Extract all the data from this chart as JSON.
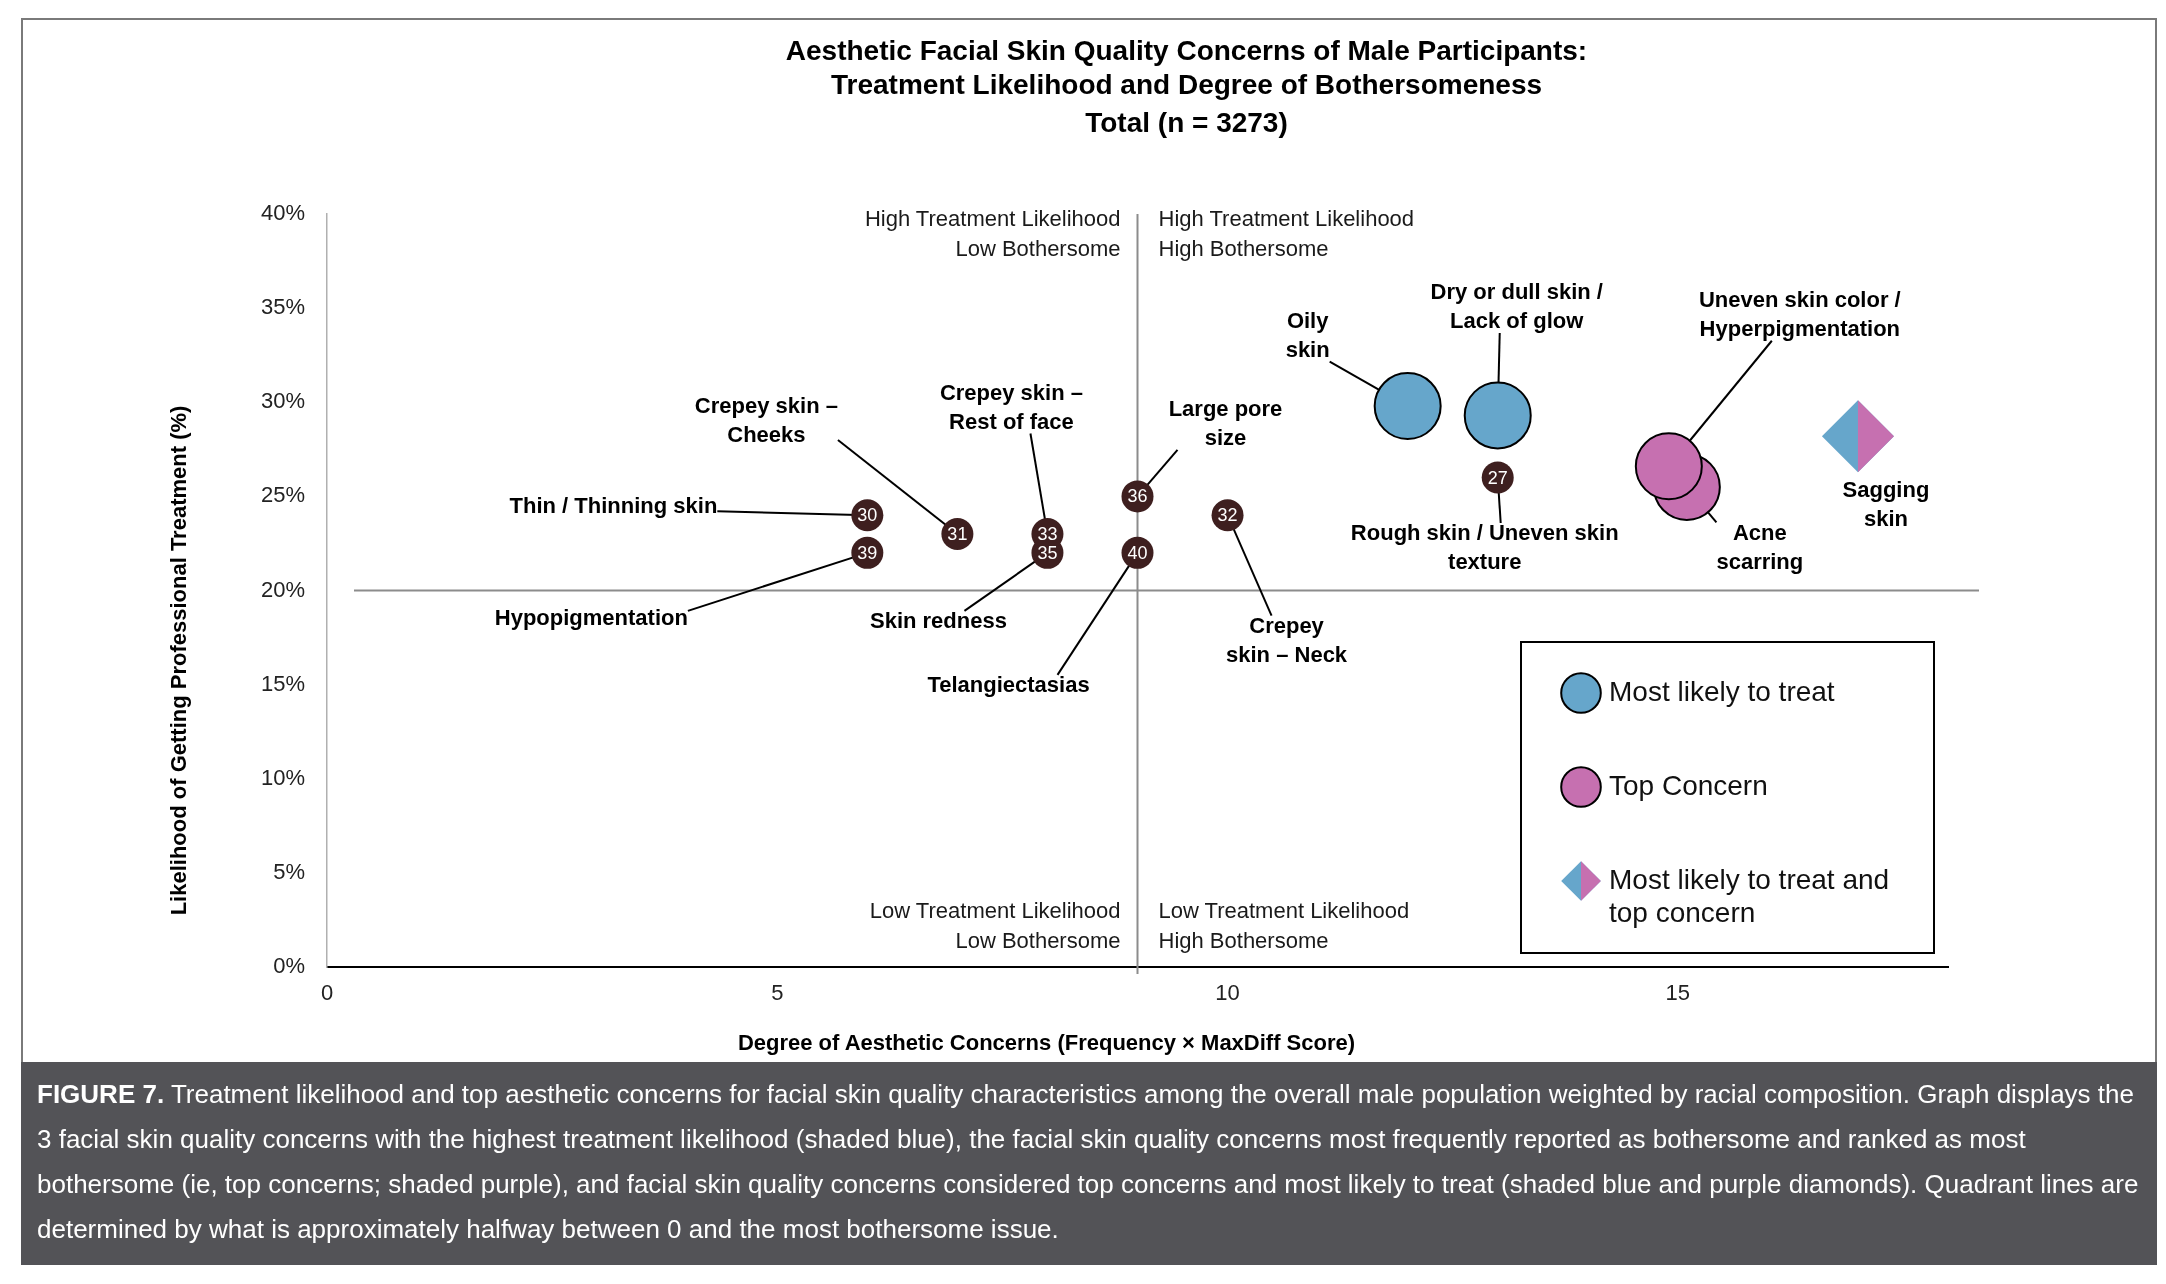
{
  "chart_data": {
    "type": "scatter",
    "title": "Aesthetic Facial Skin Quality Concerns of Male Participants:\nTreatment Likelihood and Degree of Bothersomeness",
    "subtitle": "Total (n = 3273)",
    "xlabel": "Degree of Aesthetic Concerns (Frequency × MaxDiff Score)",
    "ylabel": "Likelihood of Getting Professional Treatment (%)",
    "xlim": [
      0,
      18
    ],
    "xticks": [
      0,
      5,
      10,
      15
    ],
    "ylim": [
      0,
      40
    ],
    "yticks": [
      {
        "value": 0,
        "label": "0%"
      },
      {
        "value": 5,
        "label": "5%"
      },
      {
        "value": 10,
        "label": "10%"
      },
      {
        "value": 15,
        "label": "15%"
      },
      {
        "value": 20,
        "label": "20%"
      },
      {
        "value": 25,
        "label": "25%"
      },
      {
        "value": 30,
        "label": "30%"
      },
      {
        "value": 35,
        "label": "35%"
      },
      {
        "value": 40,
        "label": "40%"
      }
    ],
    "legend": "bottom right",
    "series": [
      {
        "color": "#3e1f1f",
        "marker": "circle",
        "x": [
          6,
          6,
          7,
          8,
          8,
          9,
          9,
          10,
          13
        ],
        "values": [
          24,
          22,
          23,
          22,
          23,
          25,
          22,
          24,
          26
        ]
      },
      {
        "name": "Most likely to treat",
        "color": "#66a6cb",
        "marker": "circle",
        "x": [
          12,
          13
        ],
        "values": [
          29.8,
          29.3
        ]
      },
      {
        "name": "Top Concern",
        "color": "#c670b0",
        "marker": "circle",
        "x": [
          15.1,
          14.9
        ],
        "values": [
          25.5,
          26.6
        ]
      },
      {
        "name": "Most likely to treat and top concern",
        "color": "#66a6cb",
        "marker": "diamond",
        "x": [
          17
        ],
        "values": [
          28.2
        ]
      },
      {
        "color": "#c670b0",
        "marker": "diamond",
        "x": [
          17
        ],
        "values": [
          28.2
        ]
      }
    ],
    "ref_lines": [
      {
        "axis": "x",
        "value": 9,
        "color": "#8c8c8c"
      },
      {
        "axis": "y",
        "value": 20,
        "color": "#8c8c8c"
      }
    ],
    "annotations": [
      "High Treatment Likelihood\nLow Bothersome",
      "High Treatment Likelihood\nHigh Bothersome",
      "Low Treatment Likelihood\nLow Bothersome",
      "Low Treatment Likelihood\nHigh Bothersome",
      {
        "text": "Thin / Thinning skin",
        "x": 6,
        "y": 24
      },
      {
        "text": "Crepey skin –\nCheeks",
        "x": 7,
        "y": 23
      },
      {
        "text": "Crepey skin –\nRest of face",
        "x": 8,
        "y": 23
      },
      {
        "text": "Hypopigmentation",
        "x": 6,
        "y": 22
      },
      {
        "text": "Skin redness",
        "x": 8,
        "y": 22
      },
      {
        "text": "Telangiectasias",
        "x": 9,
        "y": 22
      },
      {
        "text": "Large pore\nsize",
        "x": 9,
        "y": 25
      },
      {
        "text": "Crepey\nskin – Neck",
        "x": 10,
        "y": 24
      },
      {
        "text": "Rough skin / Uneven skin\ntexture",
        "x": 13,
        "y": 26
      },
      {
        "text": "Oily\nskin",
        "x": 12,
        "y": 29.8
      },
      {
        "text": "Dry or dull skin /\nLack of glow",
        "x": 13,
        "y": 29.3
      },
      {
        "text": "Uneven skin color /\nHyperpigmentation",
        "x": 14.9,
        "y": 26.6
      },
      {
        "text": "Acne\nscarring",
        "x": 15.1,
        "y": 25.5
      },
      {
        "text": "Sagging\nskin",
        "x": 17,
        "y": 28.2
      },
      {
        "text": "30",
        "x": 6,
        "y": 24
      },
      {
        "text": "39",
        "x": 6,
        "y": 22
      },
      {
        "text": "31",
        "x": 7,
        "y": 23
      },
      {
        "text": "35",
        "x": 8,
        "y": 22
      },
      {
        "text": "33",
        "x": 8,
        "y": 23
      },
      {
        "text": "36",
        "x": 9,
        "y": 25
      },
      {
        "text": "40",
        "x": 9,
        "y": 22
      },
      {
        "text": "32",
        "x": 10,
        "y": 24
      },
      {
        "text": "27",
        "x": 13,
        "y": 26
      },
      "FIGURE 7. Treatment likelihood and top aesthetic concerns for facial skin quality characteristics among the overall male population weighted by racial composition. Graph displays the 3 facial skin quality concerns with the highest treatment likelihood (shaded blue), the facial skin quality concerns most frequently reported as bothersome and ranked as most bothersome (ie, top concerns; shaded purple), and facial skin quality concerns considered top concerns and most likely to treat (shaded blue and purple diamonds). Quadrant lines are determined by what is approximately halfway between 0 and the most bothersome issue."
    ]
  }
}
